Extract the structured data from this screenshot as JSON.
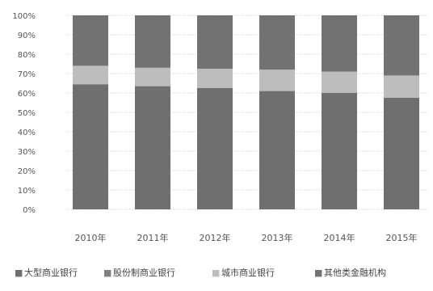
{
  "chart_data": {
    "type": "bar",
    "stacked": true,
    "categories": [
      "2010年",
      "2011年",
      "2012年",
      "2013年",
      "2014年",
      "2015年"
    ],
    "y_ticks": [
      "0%",
      "10%",
      "20%",
      "30%",
      "40%",
      "50%",
      "60%",
      "70%",
      "80%",
      "90%",
      "100%"
    ],
    "ylim": [
      0,
      100
    ],
    "legend_position": "bottom",
    "legend_markers": [
      "■",
      "■",
      "■",
      "■"
    ],
    "series": [
      {
        "name": "大型商业银行",
        "values": [
          64.5,
          63.5,
          62.5,
          61.0,
          60.0,
          57.5
        ],
        "color": "#6f6f6f"
      },
      {
        "name": "股份制商业银行",
        "values": [
          0,
          0,
          0,
          0,
          0,
          0
        ],
        "color": "#808080"
      },
      {
        "name": "城市商业银行",
        "values": [
          9.5,
          9.5,
          10.0,
          11.0,
          11.0,
          11.5
        ],
        "color": "#bdbdbd"
      },
      {
        "name": "其他类金融机构",
        "values": [
          26.0,
          27.0,
          27.5,
          28.0,
          29.0,
          31.0
        ],
        "color": "#727272"
      }
    ]
  }
}
